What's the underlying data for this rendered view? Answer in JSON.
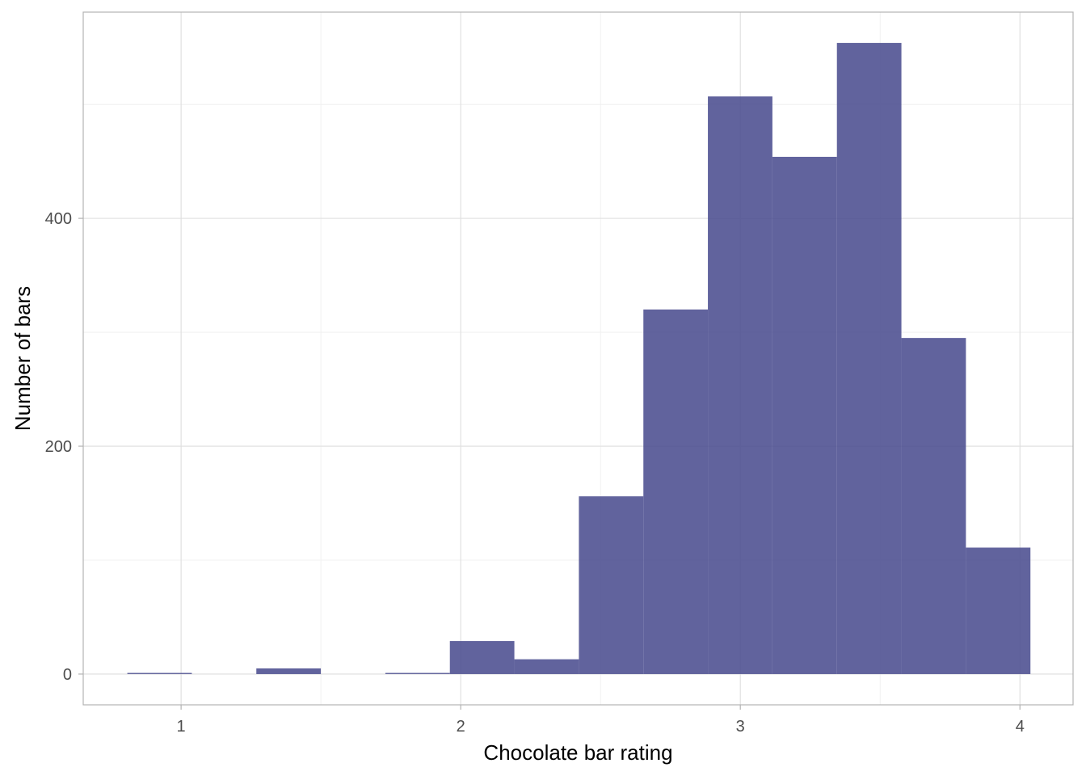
{
  "chart_data": {
    "type": "histogram",
    "title": "",
    "xlabel": "Chocolate bar rating",
    "ylabel": "Number of bars",
    "bin_width": 0.2307,
    "bins": [
      {
        "start": 0.8077,
        "end": 1.0384,
        "count": 1
      },
      {
        "start": 1.0384,
        "end": 1.2691,
        "count": 0
      },
      {
        "start": 1.2691,
        "end": 1.4998,
        "count": 5
      },
      {
        "start": 1.4998,
        "end": 1.7305,
        "count": 0
      },
      {
        "start": 1.7305,
        "end": 1.9612,
        "count": 1
      },
      {
        "start": 1.9612,
        "end": 2.1919,
        "count": 29
      },
      {
        "start": 2.1919,
        "end": 2.4226,
        "count": 13
      },
      {
        "start": 2.4226,
        "end": 2.6533,
        "count": 156
      },
      {
        "start": 2.6533,
        "end": 2.884,
        "count": 320
      },
      {
        "start": 2.884,
        "end": 3.1147,
        "count": 507
      },
      {
        "start": 3.1147,
        "end": 3.3454,
        "count": 454
      },
      {
        "start": 3.3454,
        "end": 3.5761,
        "count": 554
      },
      {
        "start": 3.5761,
        "end": 3.8068,
        "count": 295
      },
      {
        "start": 3.8068,
        "end": 4.0375,
        "count": 111
      }
    ],
    "xlim": [
      0.65,
      4.19
    ],
    "ylim": [
      -27,
      581
    ],
    "x_ticks": [
      1,
      2,
      3,
      4
    ],
    "x_tick_labels": [
      "1",
      "2",
      "3",
      "4"
    ],
    "y_ticks": [
      0,
      200,
      400
    ],
    "y_tick_labels": [
      "0",
      "200",
      "400"
    ],
    "x_minor_ticks": [
      1.5,
      2.5,
      3.5
    ],
    "y_minor_ticks": [
      100,
      300,
      500
    ],
    "grid": true,
    "fill_color": "#4B4D8F",
    "fill_opacity": 0.88,
    "legend": "none"
  }
}
